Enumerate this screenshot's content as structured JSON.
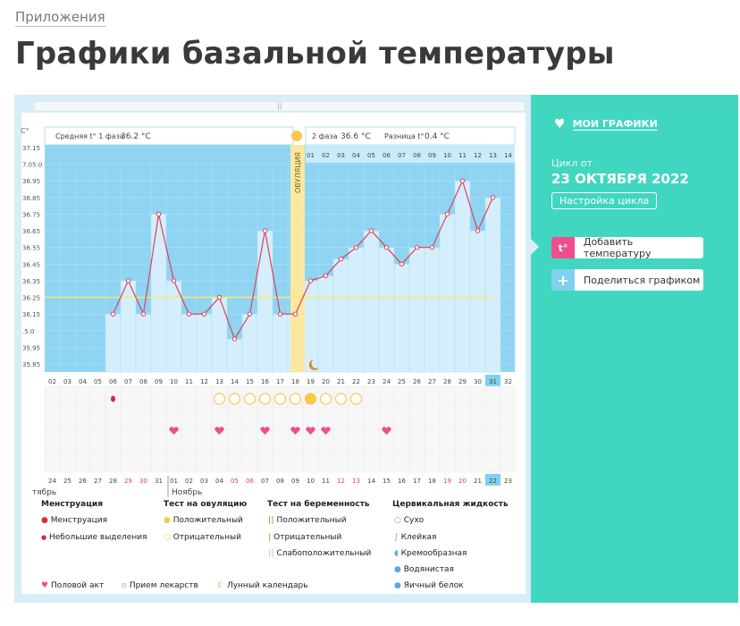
{
  "breadcrumb": "Приложения",
  "title": "Графики базальной температуры",
  "sidebar": {
    "my_charts": "МОИ ГРАФИКИ",
    "cycle_from_label": "Цикл от",
    "cycle_date": "23 ОКТЯБРЯ 2022",
    "cycle_settings": "Настройка цикла",
    "add_temperature": "Добавить температуру",
    "add_temperature_icon": "t°",
    "share_chart": "Поделиться графиком",
    "share_icon": "+"
  },
  "chart_header": {
    "phase1_label": "Средняя t° 1 фаза",
    "phase1_value": "36.2 °C",
    "phase2_label": "2 фаза",
    "phase2_value": "36.6 °C",
    "diff_label": "Разница t°",
    "diff_value": "0.4 °C",
    "unit": "C°",
    "ovulation_label": "ОВУЛЯЦИЯ"
  },
  "chart_data": {
    "type": "line",
    "ylabel": "C°",
    "y_ticks": [
      "37.15",
      "7.05.0",
      "36.95",
      "36.85",
      "36.75",
      "36.65",
      "36.55",
      "36.45",
      "36.35",
      "36.25",
      "36.15",
      ".5.0",
      "35.95",
      "35.85"
    ],
    "x_dates": [
      "02",
      "03",
      "04",
      "05",
      "06",
      "07",
      "08",
      "09",
      "10",
      "11",
      "12",
      "13",
      "14",
      "15",
      "16",
      "17",
      "18",
      "19",
      "20",
      "21",
      "22",
      "23",
      "24",
      "25",
      "26",
      "27",
      "28",
      "29",
      "30",
      "31",
      "32"
    ],
    "values": [
      null,
      null,
      null,
      null,
      36.15,
      36.35,
      36.15,
      36.75,
      36.35,
      36.15,
      36.15,
      36.25,
      36.0,
      36.15,
      36.65,
      36.15,
      36.15,
      36.35,
      36.38,
      36.48,
      36.55,
      36.65,
      36.55,
      36.45,
      36.55,
      36.55,
      36.75,
      36.95,
      36.65,
      36.85,
      null
    ],
    "coverline": 36.25,
    "ovulation_date_index": 16,
    "phase2_days": [
      "01",
      "02",
      "03",
      "04",
      "05",
      "06",
      "07",
      "08",
      "09",
      "10",
      "11",
      "12",
      "13",
      "14"
    ],
    "cycle_days": [
      "24",
      "25",
      "26",
      "27",
      "28",
      "29",
      "30",
      "31",
      "01",
      "02",
      "03",
      "04",
      "05",
      "06",
      "07",
      "08",
      "09",
      "10",
      "11",
      "12",
      "13",
      "14",
      "15",
      "16",
      "17",
      "18",
      "19",
      "20",
      "21",
      "22",
      "23"
    ],
    "month_left": "тябрь",
    "month_right": "Ноябрь",
    "highlight_date": "31",
    "highlight_cycle_day": "22"
  },
  "legend": {
    "menstruation_header": "Менструация",
    "menstruation": "Менструация",
    "spotting": "Небольшие выделения",
    "ovulation_test_header": "Тест на овуляцию",
    "positive": "Положительный",
    "negative": "Отрицательный",
    "pregnancy_test_header": "Тест на беременность",
    "preg_positive": "Положительный",
    "preg_negative": "Отрицательный",
    "preg_weak": "Слабоположительный",
    "cervical_header": "Цервикальная жидкость",
    "dry": "Сухо",
    "sticky": "Клейкая",
    "creamy": "Кремообразная",
    "watery": "Водянистая",
    "egg_white": "Яичный белок",
    "intercourse": "Половой акт",
    "medication": "Прием лекарств",
    "lunar": "Лунный календарь"
  },
  "colors": {
    "accent": "#41d6c0",
    "pink": "#f04d8c",
    "sky": "#7fd1f0",
    "ovulation": "#fbe8a0",
    "line": "#e0405a"
  }
}
